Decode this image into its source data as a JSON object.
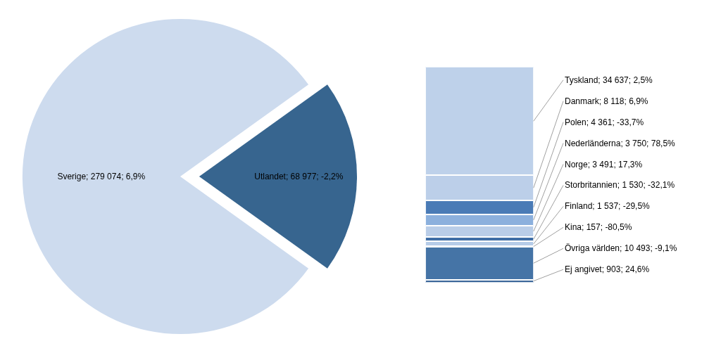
{
  "chart_data": [
    {
      "type": "pie",
      "categories": [
        "Sverige",
        "Utlandet"
      ],
      "values": [
        279074,
        68977
      ],
      "colors": [
        "#cddbee",
        "#37658f"
      ],
      "value_labels": [
        "279 074; 6,9%",
        "68 977; -2,2%"
      ]
    },
    {
      "type": "bar",
      "stacked": true,
      "categories": [
        null
      ],
      "tick_labels": false,
      "series": [
        {
          "color": "#3b6699",
          "values": [
            903
          ],
          "value_labels": [
            "Ej angivet; 903; 24,6%"
          ]
        },
        {
          "color": "#4574a6",
          "values": [
            10493
          ],
          "value_labels": [
            "Övriga världen; 10 493; -9,1%"
          ]
        },
        {
          "color": "#9cb9dc",
          "values": [
            157
          ],
          "value_labels": [
            "Kina; 157; -80,5%"
          ]
        },
        {
          "color": "#b6cce8",
          "values": [
            1537
          ],
          "value_labels": [
            "Finland; 1 537; -29,5%"
          ]
        },
        {
          "color": "#3f6ea6",
          "values": [
            1530
          ],
          "value_labels": [
            "Storbritannien; 1 530; -32,1%"
          ]
        },
        {
          "color": "#b9cde8",
          "values": [
            3491
          ],
          "value_labels": [
            "Norge; 3 491; 17,3%"
          ]
        },
        {
          "color": "#8cb0dd",
          "values": [
            3750
          ],
          "value_labels": [
            "Nederländerna; 3 750; 78,5%"
          ]
        },
        {
          "color": "#4a7bb6",
          "values": [
            4361
          ],
          "value_labels": [
            "Polen; 4 361; -33,7%"
          ]
        },
        {
          "color": "#bccfe9",
          "values": [
            8118
          ],
          "value_labels": [
            "Danmark; 8 118; 6,9%"
          ]
        },
        {
          "color": "#bed1ea",
          "values": [
            34637
          ],
          "value_labels": [
            "Tyskland; 34 637; 2,5%"
          ]
        }
      ]
    }
  ]
}
